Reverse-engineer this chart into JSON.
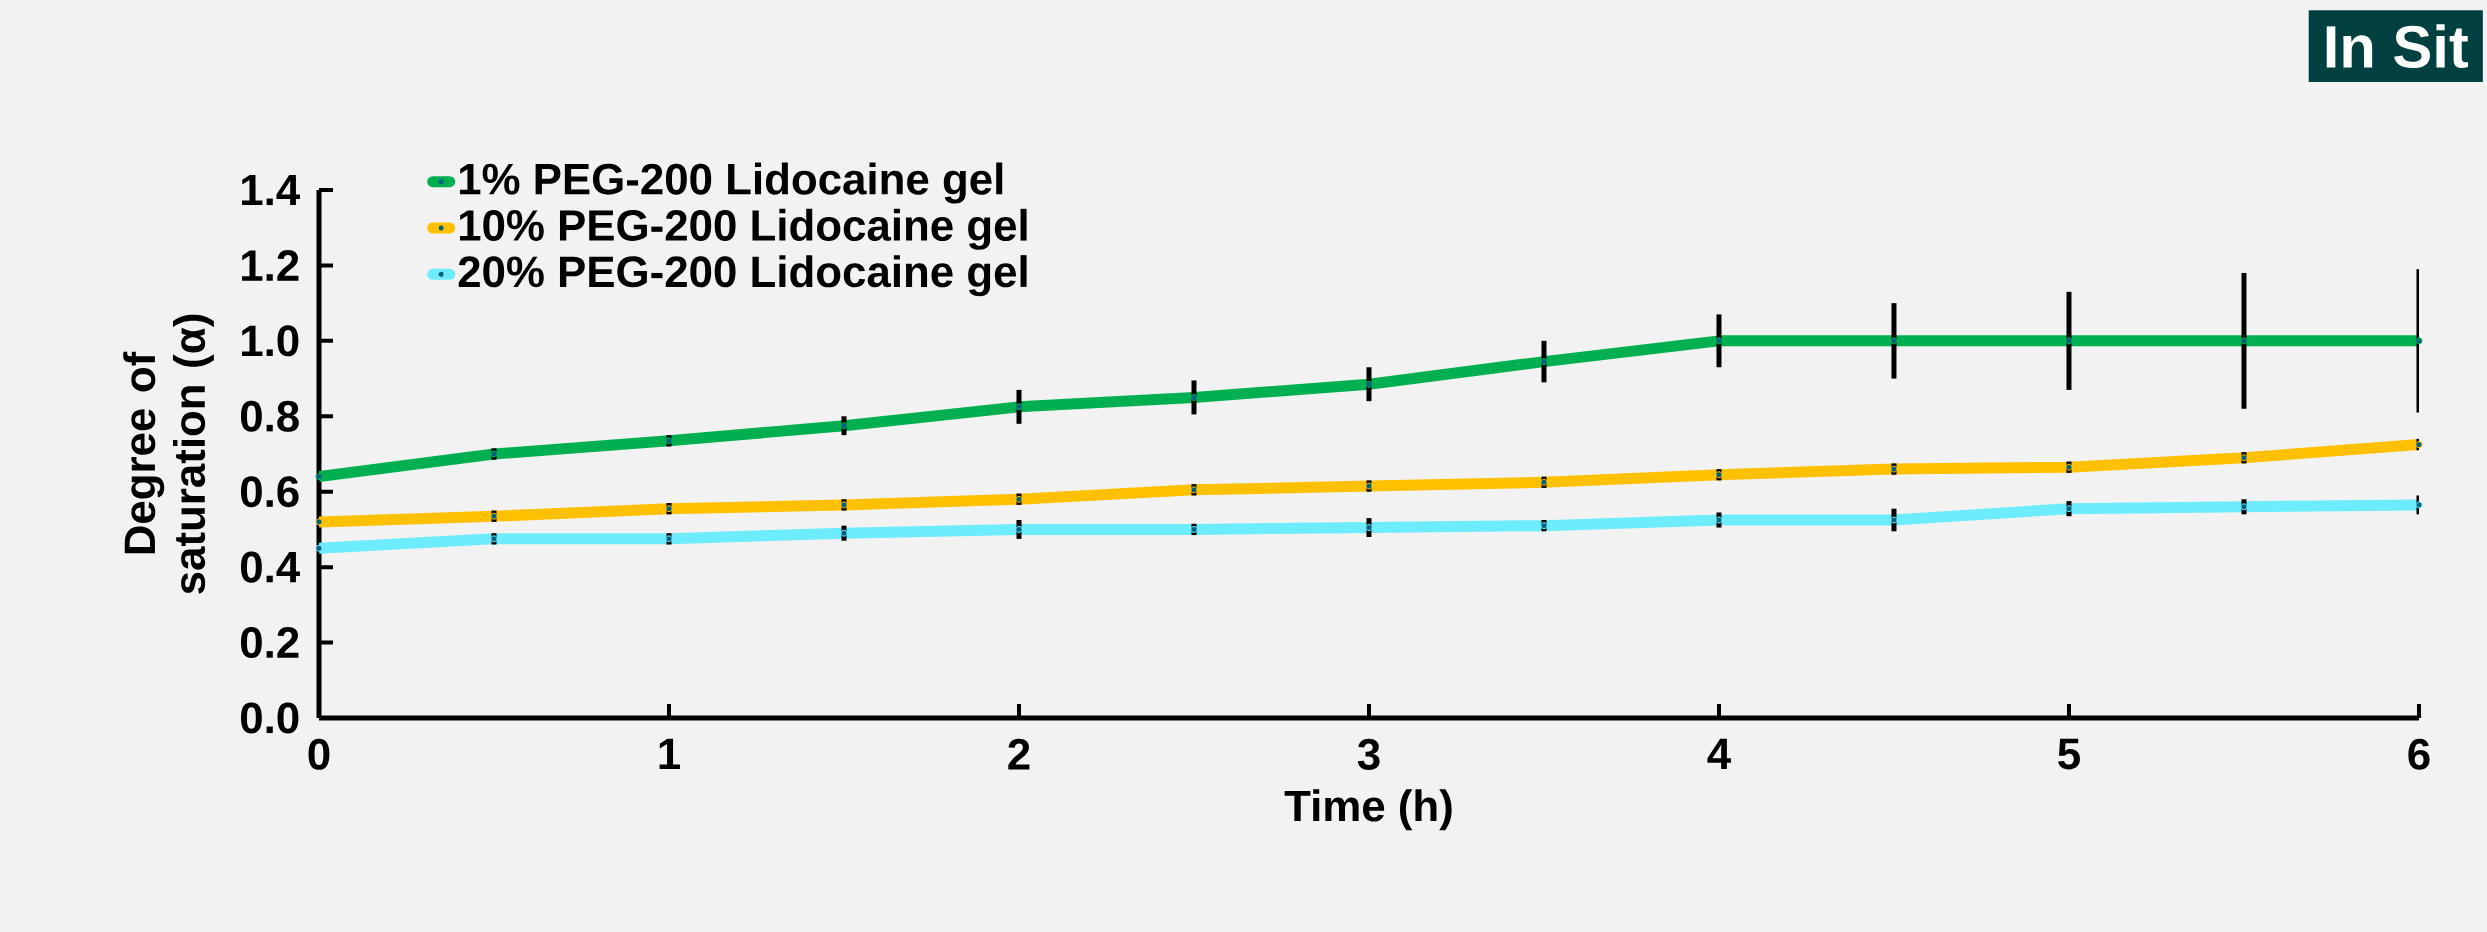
{
  "chart_data": {
    "type": "line",
    "xlabel": "Time (h)",
    "ylabel": "Degree of saturation (α)",
    "annotations": [
      "In Sit"
    ],
    "x": [
      0,
      0.5,
      1,
      1.5,
      2,
      2.5,
      3,
      3.5,
      4,
      4.5,
      5,
      5.5,
      6
    ],
    "xlim": [
      0,
      6
    ],
    "xticks": [
      0,
      1,
      2,
      3,
      4,
      5,
      6
    ],
    "ylim": [
      0,
      1.4
    ],
    "yticks": [
      {
        "value": 0,
        "label": "0.0"
      },
      {
        "value": 0.2,
        "label": "0.2"
      },
      {
        "value": 0.4,
        "label": "0.4"
      },
      {
        "value": 0.6,
        "label": "0.6"
      },
      {
        "value": 0.8,
        "label": "0.8"
      },
      {
        "value": 1.0,
        "label": "1.0"
      },
      {
        "value": 1.2,
        "label": "1.2"
      },
      {
        "value": 1.4,
        "label": "1.4"
      }
    ],
    "grid": false,
    "legend": "top left",
    "marker": "circle",
    "line_style": "solid",
    "series": [
      {
        "name": "1% PEG-200 Lidocaine gel",
        "color": "#00b050",
        "values": [
          0.64,
          0.7,
          0.735,
          0.775,
          0.825,
          0.85,
          0.885,
          0.945,
          1.0,
          1.0,
          1.0,
          1.0,
          1.0
        ],
        "errors": [
          null,
          0.015,
          0.015,
          0.025,
          0.045,
          0.045,
          0.045,
          0.055,
          0.07,
          0.1,
          0.13,
          0.18,
          0.19
        ]
      },
      {
        "name": "10% PEG-200 Lidocaine gel",
        "color": "#ffc000",
        "values": [
          0.52,
          0.535,
          0.555,
          0.565,
          0.58,
          0.605,
          0.615,
          0.625,
          0.645,
          0.66,
          0.665,
          0.69,
          0.725
        ],
        "errors": [
          null,
          0.015,
          0.015,
          0.015,
          0.015,
          0.015,
          0.015,
          0.015,
          0.015,
          0.015,
          0.015,
          0.015,
          0.015
        ]
      },
      {
        "name": "20% PEG-200 Lidocaine gel",
        "color": "#6cecfc",
        "values": [
          0.45,
          0.475,
          0.475,
          0.49,
          0.5,
          0.5,
          0.505,
          0.51,
          0.525,
          0.525,
          0.555,
          0.56,
          0.565
        ],
        "errors": [
          null,
          0.015,
          0.015,
          0.02,
          0.025,
          0.015,
          0.025,
          0.015,
          0.02,
          0.03,
          0.02,
          0.02,
          0.025
        ]
      }
    ]
  }
}
